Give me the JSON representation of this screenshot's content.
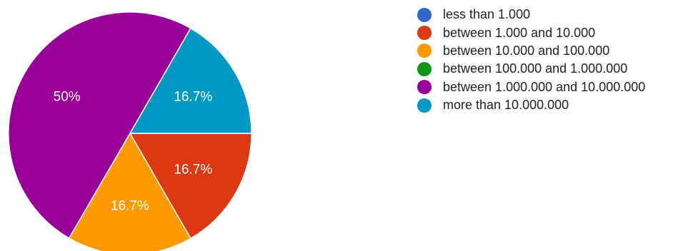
{
  "chart_data": {
    "type": "pie",
    "title": "",
    "categories": [
      "less than 1.000",
      "between 1.000 and 10.000",
      "between 10.000 and 100.000",
      "between 100.000 and 1.000.000",
      "between 1.000.000 and 10.000.000",
      "more than 10.000.000"
    ],
    "values": [
      0,
      16.7,
      16.7,
      0,
      50,
      16.7
    ],
    "data_labels": [
      "",
      "16.7%",
      "16.7%",
      "",
      "50%",
      "16.7%"
    ],
    "colors": [
      "#3366cc",
      "#dc3912",
      "#ff9900",
      "#109618",
      "#990099",
      "#0099c6"
    ],
    "start_angle_deg": 0,
    "direction": "clockwise",
    "legend_position": "right"
  }
}
